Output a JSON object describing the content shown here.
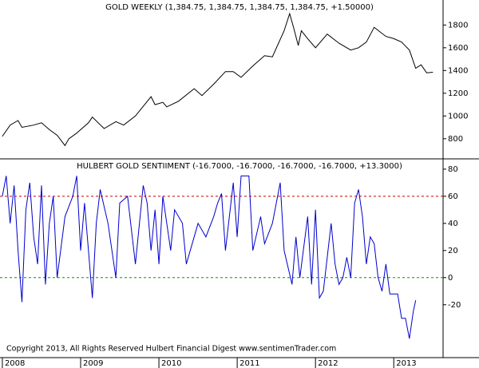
{
  "chart_data": [
    {
      "type": "line",
      "title": "GOLD WEEKLY (1,384.75, 1,384.75, 1,384.75, 1,384.75, +1.50000)",
      "series": [
        {
          "color": "#000000",
          "x": [
            2008.0,
            2008.1,
            2008.2,
            2008.25,
            2008.4,
            2008.5,
            2008.6,
            2008.7,
            2008.8,
            2008.85,
            2008.95,
            2009.1,
            2009.15,
            2009.3,
            2009.45,
            2009.55,
            2009.7,
            2009.9,
            2009.95,
            2010.05,
            2010.1,
            2010.25,
            2010.45,
            2010.55,
            2010.7,
            2010.85,
            2010.95,
            2011.05,
            2011.2,
            2011.35,
            2011.45,
            2011.6,
            2011.67,
            2011.72,
            2011.78,
            2011.82,
            2011.9,
            2012.0,
            2012.15,
            2012.3,
            2012.45,
            2012.55,
            2012.65,
            2012.75,
            2012.9,
            2013.0,
            2013.1,
            2013.2,
            2013.28,
            2013.35,
            2013.42,
            2013.5
          ],
          "values": [
            820,
            920,
            960,
            900,
            920,
            940,
            880,
            830,
            740,
            800,
            850,
            940,
            990,
            890,
            950,
            920,
            1000,
            1170,
            1100,
            1120,
            1080,
            1130,
            1240,
            1180,
            1280,
            1390,
            1390,
            1340,
            1440,
            1530,
            1520,
            1750,
            1900,
            1780,
            1620,
            1750,
            1680,
            1600,
            1720,
            1640,
            1580,
            1600,
            1650,
            1780,
            1700,
            1680,
            1650,
            1580,
            1420,
            1450,
            1380,
            1385
          ]
        }
      ],
      "xlim": [
        2007.97,
        2013.63
      ],
      "ylim": [
        630,
        2020
      ],
      "yticks": [
        800,
        1000,
        1200,
        1400,
        1600,
        1800
      ]
    },
    {
      "type": "line",
      "title": "HULBERT GOLD SENTIIMENT (-16.7000, -16.7000, -16.7000, -16.7000, +13.3000)",
      "series": [
        {
          "color": "#0000cc",
          "x": [
            2008.0,
            2008.05,
            2008.1,
            2008.15,
            2008.2,
            2008.25,
            2008.3,
            2008.35,
            2008.4,
            2008.45,
            2008.5,
            2008.55,
            2008.6,
            2008.65,
            2008.7,
            2008.8,
            2008.9,
            2008.95,
            2009.0,
            2009.05,
            2009.1,
            2009.15,
            2009.2,
            2009.25,
            2009.35,
            2009.45,
            2009.5,
            2009.6,
            2009.7,
            2009.8,
            2009.85,
            2009.9,
            2009.95,
            2010.0,
            2010.05,
            2010.15,
            2010.2,
            2010.3,
            2010.35,
            2010.45,
            2010.5,
            2010.6,
            2010.7,
            2010.75,
            2010.8,
            2010.85,
            2010.95,
            2011.0,
            2011.05,
            2011.15,
            2011.2,
            2011.3,
            2011.35,
            2011.45,
            2011.55,
            2011.6,
            2011.7,
            2011.75,
            2011.8,
            2011.9,
            2011.95,
            2012.0,
            2012.05,
            2012.1,
            2012.2,
            2012.25,
            2012.3,
            2012.35,
            2012.4,
            2012.45,
            2012.5,
            2012.55,
            2012.6,
            2012.65,
            2012.7,
            2012.75,
            2012.8,
            2012.85,
            2012.9,
            2012.95,
            2013.05,
            2013.1,
            2013.15,
            2013.2,
            2013.25,
            2013.28
          ],
          "values": [
            60,
            75,
            40,
            68,
            20,
            -18,
            50,
            70,
            30,
            10,
            68,
            -5,
            40,
            60,
            0,
            45,
            60,
            75,
            20,
            55,
            20,
            -15,
            40,
            65,
            40,
            0,
            55,
            60,
            10,
            68,
            55,
            20,
            50,
            10,
            60,
            20,
            50,
            40,
            10,
            30,
            40,
            30,
            45,
            55,
            62,
            20,
            70,
            30,
            75,
            75,
            20,
            45,
            25,
            40,
            70,
            20,
            -5,
            30,
            0,
            45,
            -5,
            50,
            -15,
            -10,
            40,
            10,
            -5,
            0,
            15,
            0,
            55,
            65,
            45,
            10,
            30,
            25,
            0,
            -10,
            10,
            -12,
            -12,
            -30,
            -30,
            -45,
            -25,
            -16.7
          ]
        }
      ],
      "xlim": [
        2007.97,
        2013.63
      ],
      "ylim": [
        -59,
        87
      ],
      "yticks": [
        -20,
        0,
        20,
        40,
        60,
        80
      ],
      "xticks": [
        2008,
        2009,
        2010,
        2011,
        2012,
        2013
      ],
      "hlines": [
        {
          "value": 60,
          "color": "#cc0000"
        },
        {
          "value": 0,
          "color": "#009900"
        }
      ],
      "annotation": "Copyright 2013, All Rights Reserved  Hulbert Financial Digest  www.sentimenTrader.com"
    }
  ]
}
